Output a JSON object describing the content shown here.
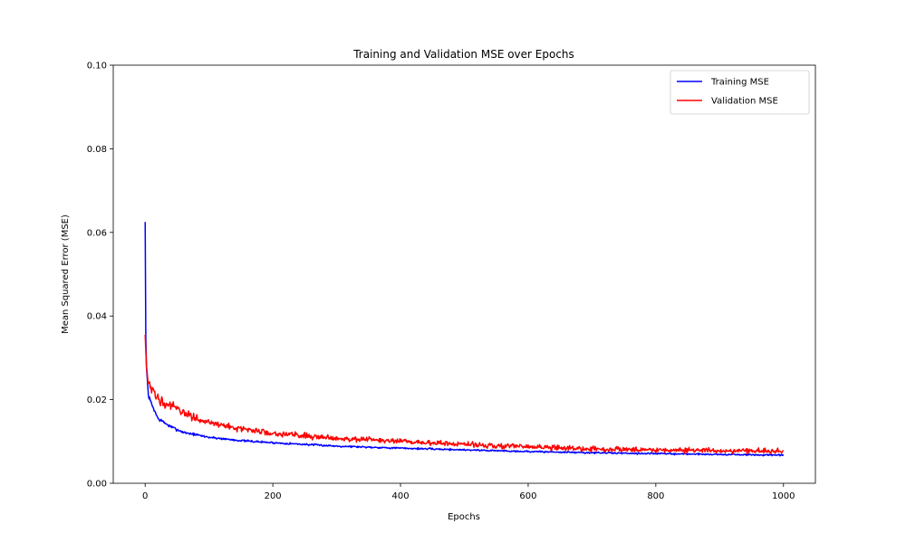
{
  "chart_data": {
    "type": "line",
    "title": "Training and Validation MSE over Epochs",
    "xlabel": "Epochs",
    "ylabel": "Mean Squared Error (MSE)",
    "xlim": [
      -50,
      1050
    ],
    "ylim": [
      0,
      0.1
    ],
    "x_ticks": [
      0,
      200,
      400,
      600,
      800,
      1000
    ],
    "y_ticks": [
      0.0,
      0.02,
      0.04,
      0.06,
      0.08,
      0.1
    ],
    "x_tick_labels": [
      "0",
      "200",
      "400",
      "600",
      "800",
      "1000"
    ],
    "y_tick_labels": [
      "0.00",
      "0.02",
      "0.04",
      "0.06",
      "0.08",
      "0.10"
    ],
    "grid": false,
    "legend_position": "top-right",
    "epochs_range": [
      0,
      1000
    ],
    "series": [
      {
        "name": "Training MSE",
        "color": "#0000ff",
        "key_points": [
          [
            0,
            0.0625
          ],
          [
            1,
            0.035
          ],
          [
            2,
            0.028
          ],
          [
            5,
            0.021
          ],
          [
            10,
            0.019
          ],
          [
            20,
            0.0155
          ],
          [
            40,
            0.0135
          ],
          [
            60,
            0.0122
          ],
          [
            100,
            0.011
          ],
          [
            150,
            0.0102
          ],
          [
            200,
            0.0097
          ],
          [
            300,
            0.0089
          ],
          [
            400,
            0.0084
          ],
          [
            500,
            0.008
          ],
          [
            600,
            0.0076
          ],
          [
            700,
            0.0073
          ],
          [
            800,
            0.0071
          ],
          [
            900,
            0.0069
          ],
          [
            1000,
            0.0067
          ]
        ],
        "noise": 0.00045
      },
      {
        "name": "Validation MSE",
        "color": "#ff0000",
        "key_points": [
          [
            0,
            0.0355
          ],
          [
            2,
            0.028
          ],
          [
            5,
            0.024
          ],
          [
            10,
            0.022
          ],
          [
            20,
            0.0205
          ],
          [
            40,
            0.0185
          ],
          [
            60,
            0.0168
          ],
          [
            100,
            0.0145
          ],
          [
            150,
            0.013
          ],
          [
            200,
            0.012
          ],
          [
            300,
            0.0108
          ],
          [
            400,
            0.01
          ],
          [
            500,
            0.0093
          ],
          [
            600,
            0.0087
          ],
          [
            700,
            0.0082
          ],
          [
            800,
            0.008
          ],
          [
            900,
            0.0078
          ],
          [
            1000,
            0.0077
          ]
        ],
        "noise": 0.0014
      }
    ]
  }
}
